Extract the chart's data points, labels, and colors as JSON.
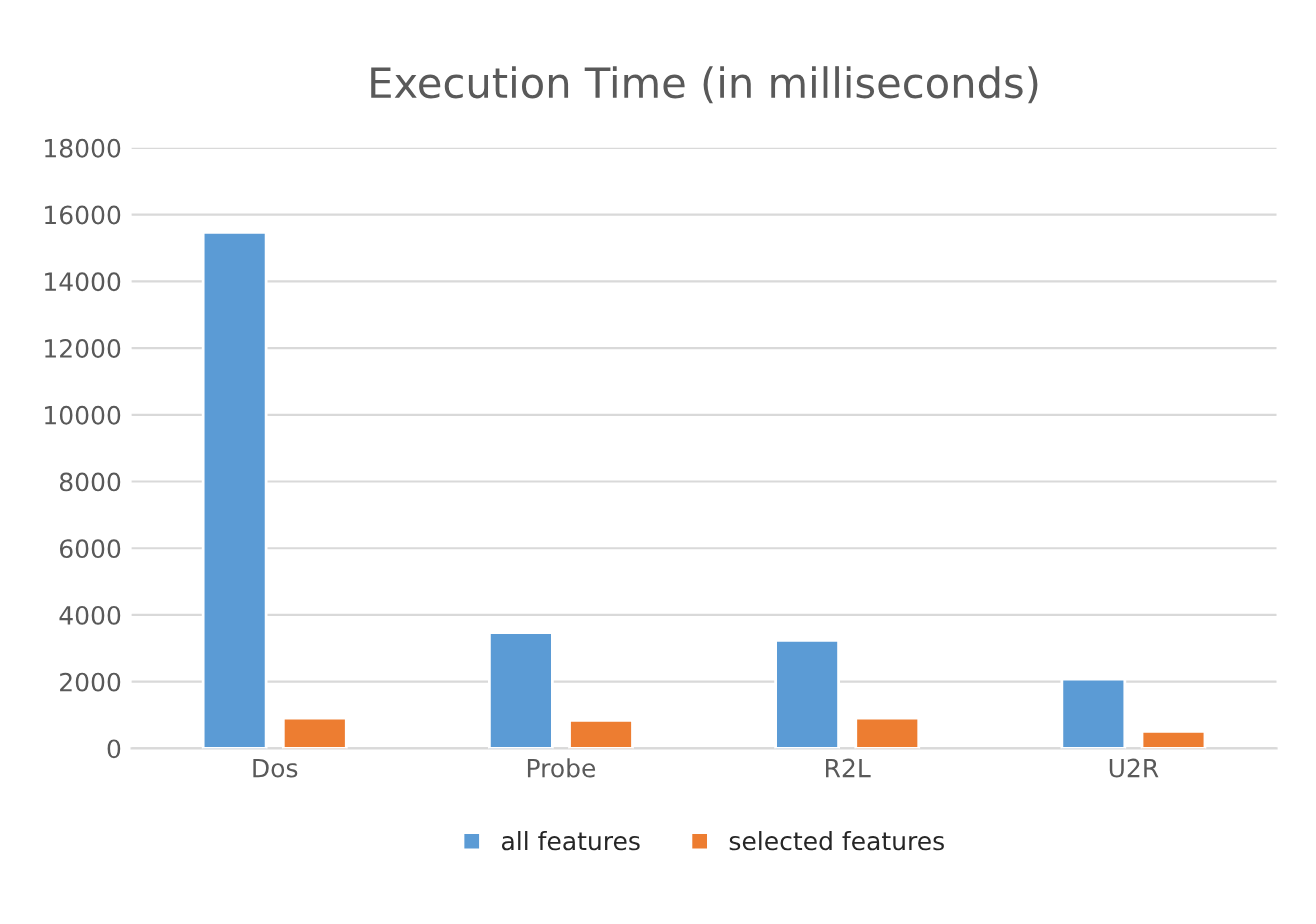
{
  "chart_data": {
    "type": "bar",
    "title": "Execution Time (in milliseconds)",
    "categories": [
      "Dos",
      "Probe",
      "R2L",
      "U2R"
    ],
    "series": [
      {
        "name": "all features",
        "color": "#5b9bd5",
        "values": [
          15470,
          3470,
          3240,
          2080
        ]
      },
      {
        "name": "selected features",
        "color": "#ed7d31",
        "values": [
          910,
          840,
          910,
          510
        ]
      }
    ],
    "ylim": [
      0,
      18000
    ],
    "yticks": [
      0,
      2000,
      4000,
      6000,
      8000,
      10000,
      12000,
      14000,
      16000,
      18000
    ],
    "grid": "y",
    "legend": "bottom"
  }
}
